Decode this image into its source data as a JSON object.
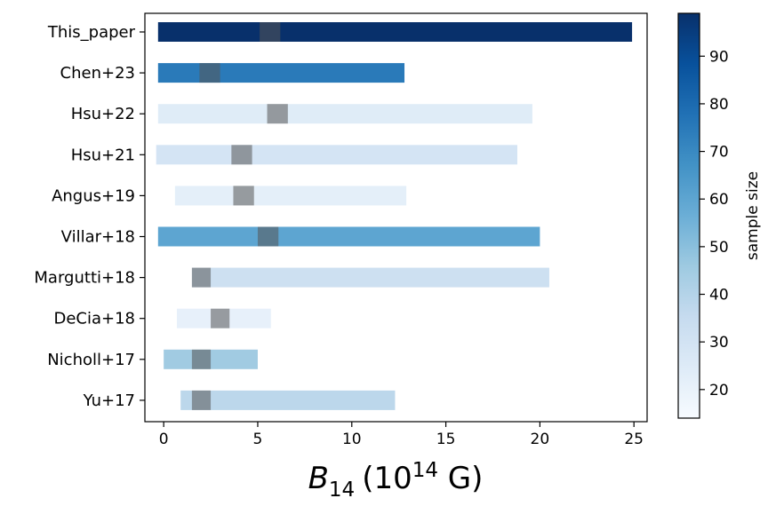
{
  "chart_data": {
    "type": "bar",
    "subtype": "horizontal-range",
    "categories": [
      "This_paper",
      "Chen+23",
      "Hsu+22",
      "Hsu+21",
      "Angus+19",
      "Villar+18",
      "Margutti+18",
      "DeCia+18",
      "Nicholl+17",
      "Yu+17"
    ],
    "ranges": [
      {
        "name": "This_paper",
        "min": -0.3,
        "max": 24.9,
        "median_low": 5.1,
        "median_high": 6.2,
        "sample_size": 99
      },
      {
        "name": "Chen+23",
        "min": -0.3,
        "max": 12.8,
        "median_low": 1.9,
        "median_high": 3.0,
        "sample_size": 75
      },
      {
        "name": "Hsu+22",
        "min": -0.3,
        "max": 19.6,
        "median_low": 5.5,
        "median_high": 6.6,
        "sample_size": 24
      },
      {
        "name": "Hsu+21",
        "min": -0.4,
        "max": 18.8,
        "median_low": 3.6,
        "median_high": 4.7,
        "sample_size": 29
      },
      {
        "name": "Angus+19",
        "min": 0.6,
        "max": 12.9,
        "median_low": 3.7,
        "median_high": 4.8,
        "sample_size": 22
      },
      {
        "name": "Villar+18",
        "min": -0.3,
        "max": 20.0,
        "median_low": 5.0,
        "median_high": 6.1,
        "sample_size": 60
      },
      {
        "name": "Margutti+18",
        "min": 1.5,
        "max": 20.5,
        "median_low": 1.5,
        "median_high": 2.5,
        "sample_size": 32
      },
      {
        "name": "DeCia+18",
        "min": 0.7,
        "max": 5.7,
        "median_low": 2.5,
        "median_high": 3.5,
        "sample_size": 21
      },
      {
        "name": "Nicholl+17",
        "min": 0.0,
        "max": 5.0,
        "median_low": 1.5,
        "median_high": 2.5,
        "sample_size": 45
      },
      {
        "name": "Yu+17",
        "min": 0.9,
        "max": 12.3,
        "median_low": 1.5,
        "median_high": 2.5,
        "sample_size": 38
      }
    ],
    "xlabel_base": "B",
    "xlabel_sub": "14",
    "xlabel_unit_prefix": "(10",
    "xlabel_unit_sup": "14",
    "xlabel_unit_suffix": " G)",
    "xlim": [
      -1,
      25.7
    ],
    "xticks": [
      0,
      5,
      10,
      15,
      20,
      25
    ],
    "xtick_labels": [
      "0",
      "5",
      "10",
      "15",
      "20",
      "25"
    ],
    "colorbar": {
      "label": "sample size",
      "range": [
        14,
        99
      ],
      "ticks": [
        20,
        30,
        40,
        50,
        60,
        70,
        80,
        90
      ],
      "tick_labels": [
        "20",
        "30",
        "40",
        "50",
        "60",
        "70",
        "80",
        "90"
      ],
      "colormap": "Blues"
    },
    "median_overlay_color": "#555555",
    "grid": false,
    "legend": "none"
  }
}
